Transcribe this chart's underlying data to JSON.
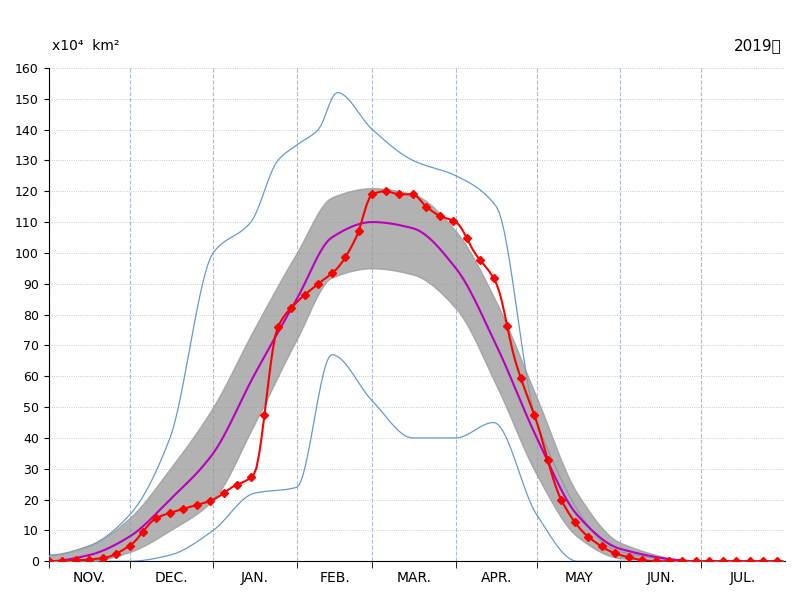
{
  "title_unit": "x10⁴  km²",
  "title_year": "2019年",
  "ylabel_vals": [
    0,
    10,
    20,
    30,
    40,
    50,
    60,
    70,
    80,
    90,
    100,
    110,
    120,
    130,
    140,
    150,
    160
  ],
  "ylim": [
    0,
    160
  ],
  "months": [
    "NOV.",
    "DEC.",
    "JAN.",
    "FEB.",
    "MAR.",
    "APR.",
    "MAY",
    "JUN.",
    "JUL."
  ],
  "mean_color": "#bb00bb",
  "band_color": "#999999",
  "max_min_color": "#6699cc",
  "obs_color": "#ff0000",
  "obs_marker": "D",
  "bg_color": "#ffffff",
  "grid_h_color": "#bbbbbb",
  "grid_v_color": "#aabbdd",
  "figsize": [
    8.0,
    6.0
  ],
  "dpi": 100
}
